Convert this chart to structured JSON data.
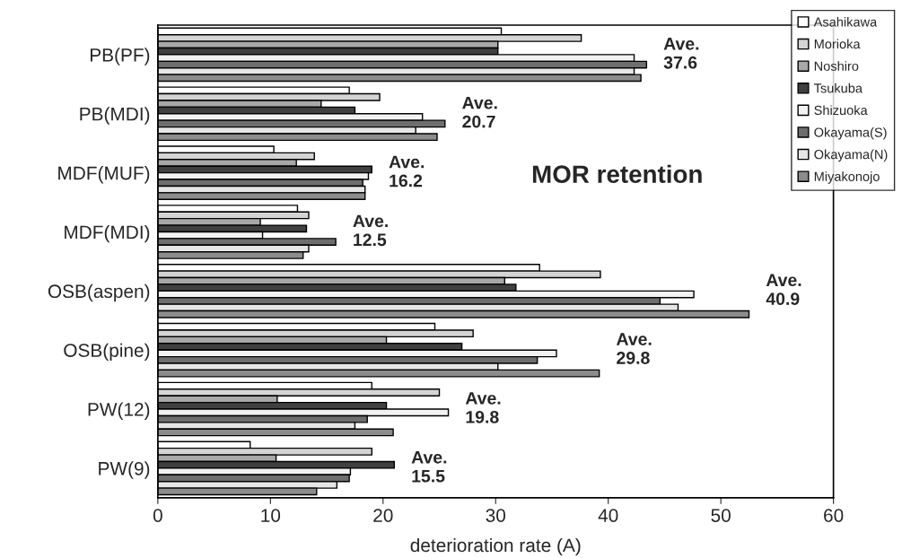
{
  "chart_data": {
    "type": "bar",
    "orientation": "horizontal",
    "xlabel": "deterioration rate (A)",
    "categories": [
      "PB(PF)",
      "PB(MDI)",
      "MDF(MUF)",
      "MDF(MDI)",
      "OSB(aspen)",
      "OSB(pine)",
      "PW(12)",
      "PW(9)"
    ],
    "series": [
      {
        "name": "Asahikawa",
        "color": "#ffffff",
        "values": [
          30.5,
          17.0,
          10.3,
          12.4,
          33.9,
          24.6,
          19.0,
          8.2
        ]
      },
      {
        "name": "Morioka",
        "color": "#d4d4d4",
        "values": [
          37.6,
          19.7,
          13.9,
          13.4,
          39.3,
          28.0,
          25.0,
          19.0
        ]
      },
      {
        "name": "Noshiro",
        "color": "#a8a8a8",
        "values": [
          30.2,
          14.5,
          12.3,
          9.1,
          30.8,
          20.3,
          10.6,
          10.5
        ]
      },
      {
        "name": "Tsukuba",
        "color": "#404040",
        "values": [
          30.2,
          17.5,
          19.0,
          13.2,
          31.8,
          27.0,
          20.3,
          21.0
        ]
      },
      {
        "name": "Shizuoka",
        "color": "#f2f2f2",
        "values": [
          42.3,
          23.5,
          18.7,
          9.3,
          47.6,
          35.4,
          25.8,
          17.1
        ]
      },
      {
        "name": "Okayama(S)",
        "color": "#6e6e6e",
        "values": [
          43.4,
          25.5,
          18.2,
          15.8,
          44.6,
          33.7,
          18.6,
          17.0
        ]
      },
      {
        "name": "Okayama(N)",
        "color": "#e6e6e6",
        "values": [
          42.3,
          22.9,
          18.4,
          13.4,
          46.2,
          30.2,
          17.5,
          15.9
        ]
      },
      {
        "name": "Miyakonojo",
        "color": "#8c8c8c",
        "values": [
          42.9,
          24.8,
          18.4,
          12.9,
          52.5,
          39.2,
          20.9,
          14.1
        ]
      }
    ],
    "xlim": [
      0,
      60
    ],
    "xticks": [
      0,
      10,
      20,
      30,
      40,
      50,
      60
    ],
    "grid": false,
    "legend": "top right",
    "annotations": [
      "MOR retention",
      "Ave.\n37.6",
      "Ave.\n20.7",
      "Ave.\n16.2",
      "Ave.\n12.5",
      "Ave.\n40.9",
      "Ave.\n29.8",
      "Ave.\n19.8",
      "Ave.\n15.5"
    ]
  }
}
